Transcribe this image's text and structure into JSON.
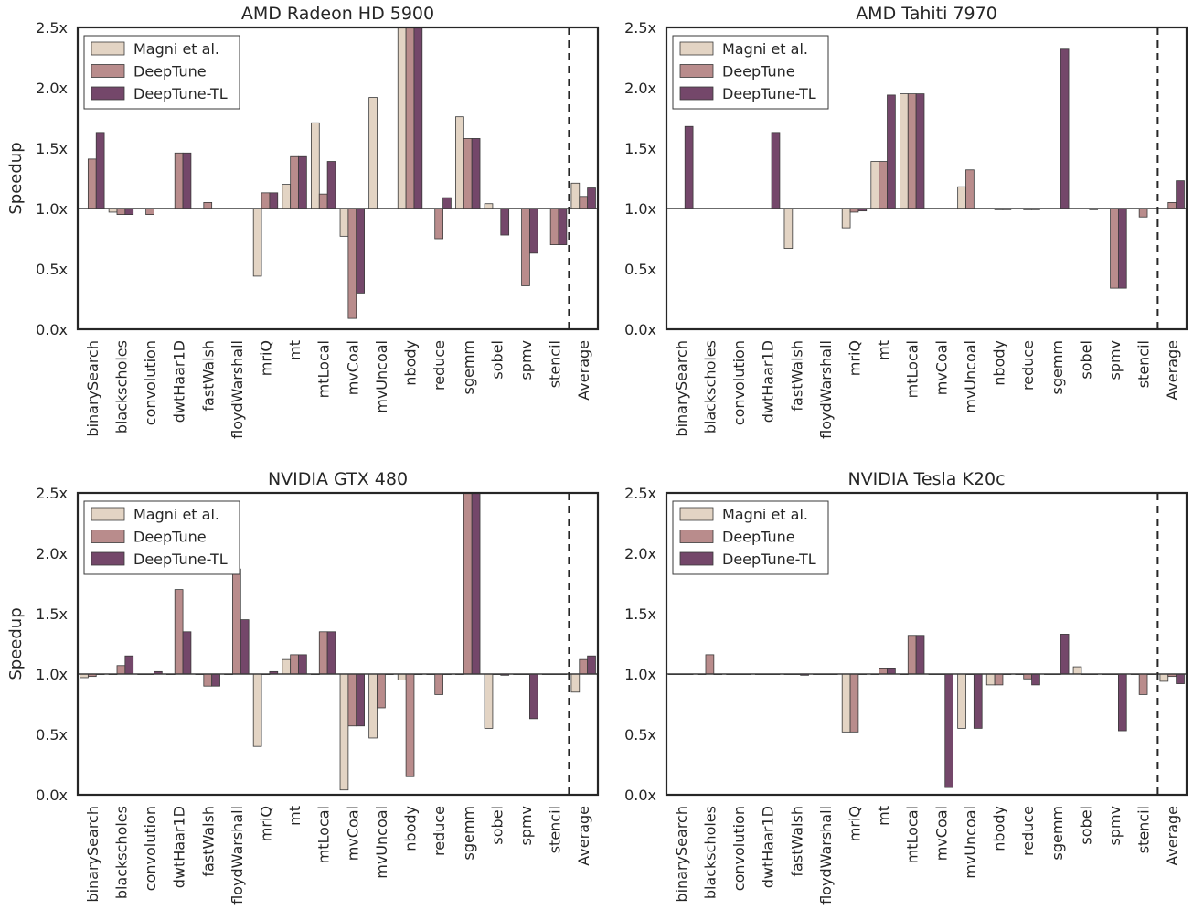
{
  "chart_data": [
    {
      "type": "bar",
      "title": "AMD Radeon HD 5900",
      "ylabel": "Speedup",
      "ylim": [
        0,
        2.5
      ],
      "yticks": [
        "0.0x",
        "0.5x",
        "1.0x",
        "1.5x",
        "2.0x",
        "2.5x"
      ],
      "categories": [
        "binarySearch",
        "blackscholes",
        "convolution",
        "dwtHaar1D",
        "fastWalsh",
        "floydWarshall",
        "mriQ",
        "mt",
        "mtLocal",
        "mvCoal",
        "mvUncoal",
        "nbody",
        "reduce",
        "sgemm",
        "sobel",
        "spmv",
        "stencil",
        "Average"
      ],
      "series": [
        {
          "name": "Magni et al.",
          "color": "#e3d4c4",
          "values": [
            1.0,
            0.97,
            1.0,
            1.0,
            1.0,
            1.0,
            0.44,
            1.2,
            1.71,
            0.77,
            1.92,
            2.5,
            1.0,
            1.76,
            1.04,
            1.0,
            1.0,
            1.21
          ]
        },
        {
          "name": "DeepTune",
          "color": "#b98c8c",
          "values": [
            1.41,
            0.95,
            0.95,
            1.46,
            1.05,
            1.0,
            1.13,
            1.43,
            1.12,
            0.09,
            1.0,
            2.5,
            0.75,
            1.58,
            1.0,
            0.36,
            0.7,
            1.1
          ]
        },
        {
          "name": "DeepTune-TL",
          "color": "#74476a",
          "values": [
            1.63,
            0.95,
            1.0,
            1.46,
            1.0,
            1.0,
            1.13,
            1.43,
            1.39,
            0.3,
            1.0,
            2.5,
            1.09,
            1.58,
            0.78,
            0.63,
            0.7,
            1.17
          ]
        }
      ],
      "legend": "top-left",
      "grid": false,
      "average_separator": true
    },
    {
      "type": "bar",
      "title": "AMD Tahiti 7970",
      "ylabel": "",
      "ylim": [
        0,
        2.5
      ],
      "yticks": [
        "0.0x",
        "0.5x",
        "1.0x",
        "1.5x",
        "2.0x",
        "2.5x"
      ],
      "categories": [
        "binarySearch",
        "blackscholes",
        "convolution",
        "dwtHaar1D",
        "fastWalsh",
        "floydWarshall",
        "mriQ",
        "mt",
        "mtLocal",
        "mvCoal",
        "mvUncoal",
        "nbody",
        "reduce",
        "sgemm",
        "sobel",
        "spmv",
        "stencil",
        "Average"
      ],
      "series": [
        {
          "name": "Magni et al.",
          "color": "#e3d4c4",
          "values": [
            1.0,
            1.0,
            1.0,
            1.0,
            0.67,
            1.0,
            0.84,
            1.39,
            1.95,
            1.0,
            1.18,
            1.0,
            1.0,
            1.0,
            1.0,
            1.0,
            1.0,
            1.0
          ]
        },
        {
          "name": "DeepTune",
          "color": "#b98c8c",
          "values": [
            1.0,
            1.0,
            1.0,
            1.0,
            1.0,
            1.0,
            0.97,
            1.39,
            1.95,
            1.0,
            1.32,
            0.99,
            0.99,
            1.0,
            1.0,
            0.34,
            0.93,
            1.05
          ]
        },
        {
          "name": "DeepTune-TL",
          "color": "#74476a",
          "values": [
            1.68,
            1.0,
            1.0,
            1.63,
            1.0,
            1.0,
            0.98,
            1.94,
            1.95,
            1.0,
            1.0,
            0.99,
            0.99,
            2.32,
            0.99,
            0.34,
            1.0,
            1.23
          ]
        }
      ],
      "legend": "top-left",
      "grid": false,
      "average_separator": true
    },
    {
      "type": "bar",
      "title": "NVIDIA GTX 480",
      "ylabel": "Speedup",
      "ylim": [
        0,
        2.5
      ],
      "yticks": [
        "0.0x",
        "0.5x",
        "1.0x",
        "1.5x",
        "2.0x",
        "2.5x"
      ],
      "categories": [
        "binarySearch",
        "blackscholes",
        "convolution",
        "dwtHaar1D",
        "fastWalsh",
        "floydWarshall",
        "mriQ",
        "mt",
        "mtLocal",
        "mvCoal",
        "mvUncoal",
        "nbody",
        "reduce",
        "sgemm",
        "sobel",
        "spmv",
        "stencil",
        "Average"
      ],
      "series": [
        {
          "name": "Magni et al.",
          "color": "#e3d4c4",
          "values": [
            0.97,
            1.0,
            1.0,
            1.0,
            1.0,
            1.0,
            0.4,
            1.12,
            1.0,
            0.04,
            0.47,
            0.95,
            1.0,
            1.0,
            0.55,
            1.0,
            1.0,
            0.85
          ]
        },
        {
          "name": "DeepTune",
          "color": "#b98c8c",
          "values": [
            0.98,
            1.07,
            1.0,
            1.7,
            0.9,
            1.87,
            1.0,
            1.16,
            1.35,
            0.57,
            0.72,
            0.15,
            0.83,
            2.5,
            1.0,
            1.0,
            1.0,
            1.12
          ]
        },
        {
          "name": "DeepTune-TL",
          "color": "#74476a",
          "values": [
            1.0,
            1.15,
            1.02,
            1.35,
            0.9,
            1.45,
            1.02,
            1.16,
            1.35,
            0.57,
            1.0,
            1.0,
            1.0,
            2.5,
            0.99,
            0.63,
            1.0,
            1.15
          ]
        }
      ],
      "legend": "top-left",
      "grid": false,
      "average_separator": true
    },
    {
      "type": "bar",
      "title": "NVIDIA Tesla K20c",
      "ylabel": "",
      "ylim": [
        0,
        2.5
      ],
      "yticks": [
        "0.0x",
        "0.5x",
        "1.0x",
        "1.5x",
        "2.0x",
        "2.5x"
      ],
      "categories": [
        "binarySearch",
        "blackscholes",
        "convolution",
        "dwtHaar1D",
        "fastWalsh",
        "floydWarshall",
        "mriQ",
        "mt",
        "mtLocal",
        "mvCoal",
        "mvUncoal",
        "nbody",
        "reduce",
        "sgemm",
        "sobel",
        "spmv",
        "stencil",
        "Average"
      ],
      "series": [
        {
          "name": "Magni et al.",
          "color": "#e3d4c4",
          "values": [
            1.0,
            1.0,
            1.0,
            1.0,
            1.0,
            1.0,
            0.52,
            1.0,
            1.0,
            1.0,
            0.55,
            0.91,
            1.0,
            1.0,
            1.06,
            1.0,
            1.0,
            0.94
          ]
        },
        {
          "name": "DeepTune",
          "color": "#b98c8c",
          "values": [
            1.0,
            1.16,
            1.0,
            1.0,
            1.0,
            1.0,
            0.52,
            1.05,
            1.32,
            1.0,
            1.0,
            0.91,
            0.96,
            1.0,
            1.0,
            1.0,
            0.83,
            0.98
          ]
        },
        {
          "name": "DeepTune-TL",
          "color": "#74476a",
          "values": [
            1.0,
            1.0,
            1.0,
            1.0,
            0.99,
            1.0,
            1.0,
            1.05,
            1.32,
            0.06,
            0.55,
            1.0,
            0.91,
            1.33,
            1.0,
            0.53,
            1.0,
            0.92
          ]
        }
      ],
      "legend": "top-left",
      "grid": false,
      "average_separator": true
    }
  ]
}
